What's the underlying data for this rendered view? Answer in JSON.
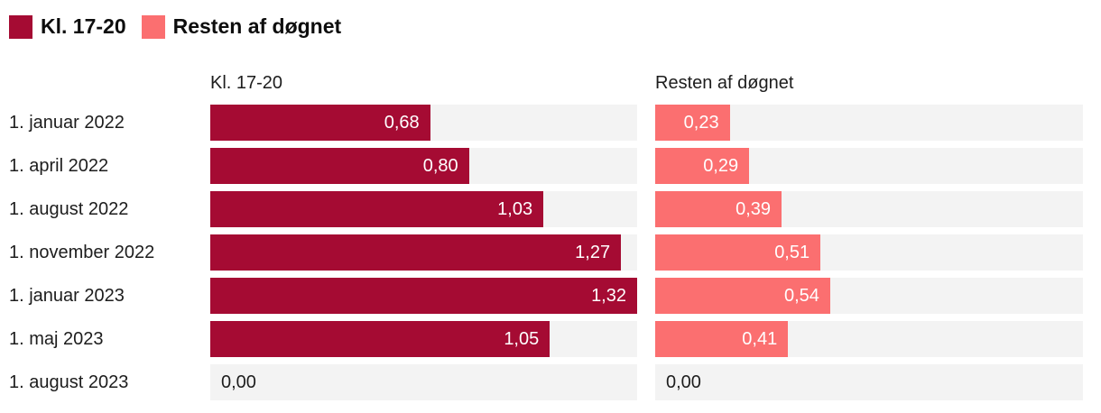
{
  "legend": {
    "items": [
      {
        "label": "Kl. 17-20",
        "color": "#A50B33"
      },
      {
        "label": "Resten af døgnet",
        "color": "#FB6F70"
      }
    ]
  },
  "columns": {
    "header_left": "Kl. 17-20",
    "header_right": "Resten af døgnet"
  },
  "chart_data": {
    "type": "bar",
    "orientation": "horizontal",
    "title": "",
    "categories": [
      "1. januar 2022",
      "1. april 2022",
      "1. august 2022",
      "1. november 2022",
      "1. januar 2023",
      "1. maj 2023",
      "1. august 2023"
    ],
    "series": [
      {
        "name": "Kl. 17-20",
        "color": "#A50B33",
        "values": [
          0.68,
          0.8,
          1.03,
          1.27,
          1.32,
          1.05,
          0.0
        ],
        "value_labels": [
          "0,68",
          "0,80",
          "1,03",
          "1,27",
          "1,32",
          "1,05",
          "0,00"
        ]
      },
      {
        "name": "Resten af døgnet",
        "color": "#FB6F70",
        "values": [
          0.23,
          0.29,
          0.39,
          0.51,
          0.54,
          0.41,
          0.0
        ],
        "value_labels": [
          "0,23",
          "0,29",
          "0,39",
          "0,51",
          "0,54",
          "0,41",
          "0,00"
        ]
      }
    ],
    "xlim": [
      0,
      1.32
    ],
    "value_label_position": "inside-end",
    "track_color": "#F3F3F3",
    "grid": false,
    "legend_position": "top-left",
    "decimal_separator": ","
  }
}
